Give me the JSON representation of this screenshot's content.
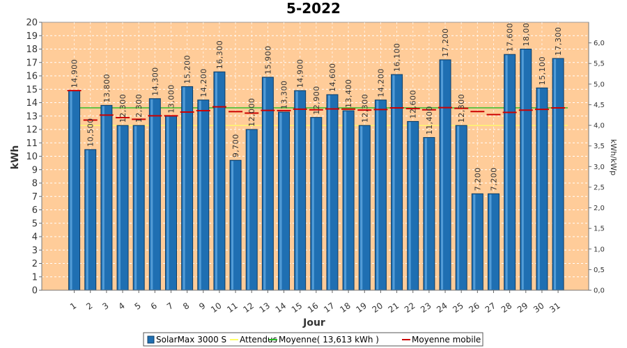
{
  "chart_data": {
    "type": "bar",
    "title": "5-2022",
    "xlabel": "Jour",
    "ylabel": "kWh",
    "ylabel_right": "kWh/kWp",
    "ylim": [
      0,
      20
    ],
    "ylim_right": [
      0,
      6.5
    ],
    "yticks": [
      "0",
      "1",
      "2",
      "3",
      "4",
      "5",
      "6",
      "7",
      "8",
      "9",
      "10",
      "11",
      "12",
      "13",
      "14",
      "15",
      "16",
      "17",
      "18",
      "19",
      "20"
    ],
    "yticks_right": [
      "0,0",
      "0,5",
      "1,0",
      "1,5",
      "2,0",
      "2,5",
      "3,0",
      "3,5",
      "4,0",
      "4,5",
      "5,0",
      "5,5",
      "6,0"
    ],
    "categories": [
      "1",
      "2",
      "3",
      "4",
      "5",
      "6",
      "7",
      "8",
      "9",
      "10",
      "11",
      "12",
      "13",
      "14",
      "15",
      "16",
      "17",
      "18",
      "19",
      "20",
      "21",
      "22",
      "23",
      "24",
      "25",
      "26",
      "27",
      "28",
      "29",
      "30",
      "31"
    ],
    "series": [
      {
        "name": "SolarMax 3000 S",
        "values": [
          14.9,
          10.5,
          13.8,
          12.3,
          12.3,
          14.3,
          13.0,
          15.2,
          14.2,
          16.3,
          9.7,
          12.0,
          15.9,
          13.3,
          14.9,
          12.9,
          14.6,
          13.4,
          12.3,
          14.2,
          16.1,
          12.6,
          11.4,
          17.2,
          12.3,
          7.2,
          7.2,
          17.6,
          18.0,
          15.1,
          17.3
        ],
        "labels": [
          "14,900",
          "10,500",
          "13,800",
          "12,300",
          "12,300",
          "14,300",
          "13,000",
          "15,200",
          "14,200",
          "16,300",
          "9,700",
          "12,000",
          "15,900",
          "13,300",
          "14,900",
          "12,900",
          "14,600",
          "13,400",
          "12,300",
          "14,200",
          "16,100",
          "12,600",
          "11,400",
          "17,200",
          "12,300",
          "7,200",
          "7,200",
          "17,600",
          "18,00",
          "15,100",
          "17,300"
        ]
      },
      {
        "name": "Moyenne mobile",
        "values": [
          14.9,
          12.7,
          13.07,
          12.88,
          12.76,
          13.02,
          13.02,
          13.3,
          13.4,
          13.69,
          13.33,
          13.22,
          13.42,
          13.41,
          13.51,
          13.47,
          13.53,
          13.52,
          13.45,
          13.49,
          13.61,
          13.56,
          13.47,
          13.63,
          13.58,
          13.34,
          13.11,
          13.27,
          13.44,
          13.5,
          13.61
        ]
      }
    ],
    "reference_lines": [
      {
        "name": "Attendus",
        "value": 12.3,
        "color": "#ffff66"
      },
      {
        "name": "Moyenne( 13,613 kWh )",
        "value": 13.613,
        "color": "#22bb22"
      }
    ],
    "legend": [
      {
        "label": "SolarMax 3000 S",
        "color": "#1f6fb2",
        "kind": "box"
      },
      {
        "label": "Attendus",
        "color": "#ffff66",
        "kind": "line"
      },
      {
        "label": "Moyenne( 13,613 kWh )",
        "color": "#22bb22",
        "kind": "line"
      },
      {
        "label": "Moyenne mobile",
        "color": "#cc0000",
        "kind": "line"
      }
    ],
    "legend_position": "bottom",
    "plot_background": "#ffcc99",
    "bar_color": "#1f6fb2",
    "moving_avg_color": "#cc0000",
    "grid": true
  }
}
